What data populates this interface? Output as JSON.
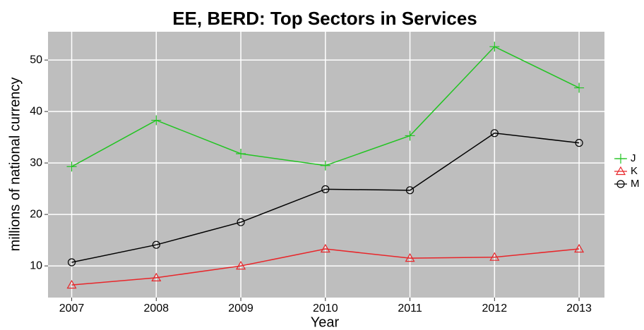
{
  "chart_data": {
    "type": "line",
    "title": "EE, BERD: Top Sectors in Services",
    "x_label": "Year",
    "y_label": "millions of national currency",
    "x": [
      2007,
      2008,
      2009,
      2010,
      2011,
      2012,
      2013
    ],
    "series": [
      {
        "name": "J",
        "color": "#22c422",
        "marker": "plus",
        "values": [
          29.3,
          38.3,
          31.8,
          29.5,
          35.3,
          52.6,
          44.6
        ]
      },
      {
        "name": "K",
        "color": "#e8262a",
        "marker": "triangle",
        "values": [
          6.3,
          7.7,
          10.0,
          13.3,
          11.5,
          11.7,
          13.3
        ]
      },
      {
        "name": "M",
        "color": "#000000",
        "marker": "circle",
        "values": [
          10.7,
          14.1,
          18.5,
          24.9,
          24.7,
          35.8,
          33.9
        ]
      }
    ],
    "xlim": [
      2006.72,
      2013.3
    ],
    "xticks": [
      2007,
      2008,
      2009,
      2010,
      2011,
      2012,
      2013
    ],
    "ylim": [
      3.85,
      55.5
    ],
    "yticks": [
      10,
      20,
      30,
      40,
      50
    ],
    "grid": true,
    "legend": "right"
  }
}
